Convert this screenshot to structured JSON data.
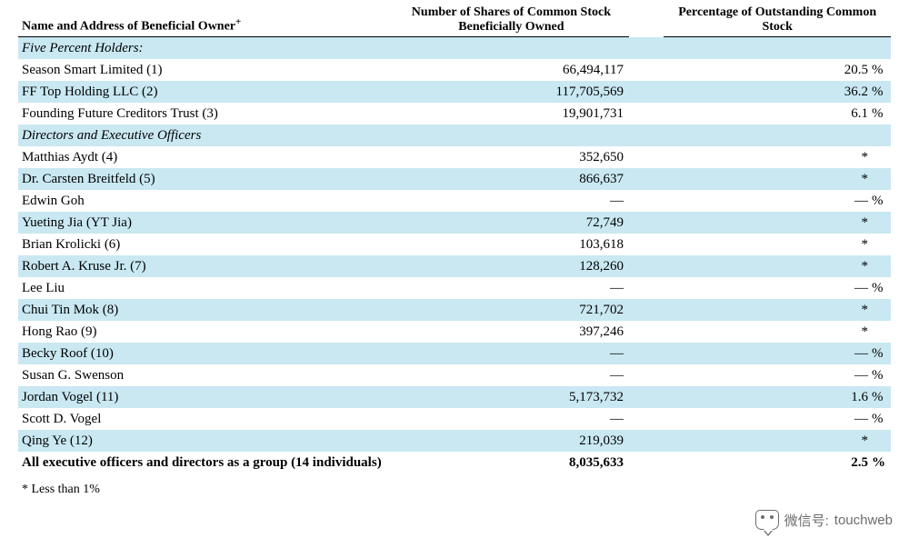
{
  "columns": {
    "name": "Name and Address of Beneficial Owner",
    "name_sup": "+",
    "shares_l1": "Number of Shares of Common Stock",
    "shares_l2": "Beneficially Owned",
    "pct": "Percentage of Outstanding Common Stock"
  },
  "col_widths": {
    "name": "43%",
    "shares": "27%",
    "gap": "4%",
    "pct_num": "23.6%",
    "pct_sym": "2.4%"
  },
  "colors": {
    "shade": "#c9e8f2",
    "border": "#000000",
    "text": "#000000",
    "watermark": "#6d6d6d"
  },
  "sections": {
    "five_pct": "Five Percent Holders:",
    "directors": "Directors and Executive Officers"
  },
  "rows_five_pct": [
    {
      "name": "Season Smart Limited (1)",
      "shares": "66,494,117",
      "pct": "20.5",
      "sym": "%"
    },
    {
      "name": "FF Top Holding LLC (2)",
      "shares": "117,705,569",
      "pct": "36.2",
      "sym": "%"
    },
    {
      "name": "Founding Future Creditors Trust (3)",
      "shares": "19,901,731",
      "pct": "6.1",
      "sym": "%"
    }
  ],
  "rows_directors": [
    {
      "name": "Matthias Aydt (4)",
      "shares": "352,650",
      "pct": "*",
      "sym": ""
    },
    {
      "name": "Dr. Carsten Breitfeld (5)",
      "shares": "866,637",
      "pct": "*",
      "sym": ""
    },
    {
      "name": "Edwin Goh",
      "shares": "—",
      "pct": "—",
      "sym": "%"
    },
    {
      "name": "Yueting Jia (YT Jia)",
      "shares": "72,749",
      "pct": "*",
      "sym": ""
    },
    {
      "name": "Brian Krolicki (6)",
      "shares": "103,618",
      "pct": "*",
      "sym": ""
    },
    {
      "name": "Robert A. Kruse Jr. (7)",
      "shares": "128,260",
      "pct": "*",
      "sym": ""
    },
    {
      "name": "Lee Liu",
      "shares": "—",
      "pct": "—",
      "sym": "%"
    },
    {
      "name": "Chui Tin Mok (8)",
      "shares": "721,702",
      "pct": "*",
      "sym": ""
    },
    {
      "name": "Hong Rao (9)",
      "shares": "397,246",
      "pct": "*",
      "sym": ""
    },
    {
      "name": "Becky Roof (10)",
      "shares": "—",
      "pct": "—",
      "sym": "%"
    },
    {
      "name": "Susan G. Swenson",
      "shares": "—",
      "pct": "—",
      "sym": "%"
    },
    {
      "name": "Jordan Vogel (11)",
      "shares": "5,173,732",
      "pct": "1.6",
      "sym": "%"
    },
    {
      "name": "Scott D. Vogel",
      "shares": "—",
      "pct": "—",
      "sym": "%"
    },
    {
      "name": "Qing Ye (12)",
      "shares": "219,039",
      "pct": "*",
      "sym": ""
    }
  ],
  "total_row": {
    "name": "All executive officers and directors as a group (14 individuals)",
    "shares": "8,035,633",
    "pct": "2.5",
    "sym": "%"
  },
  "footnote": "* Less than 1%",
  "watermark": {
    "label": "微信号:",
    "value": "touchweb"
  }
}
